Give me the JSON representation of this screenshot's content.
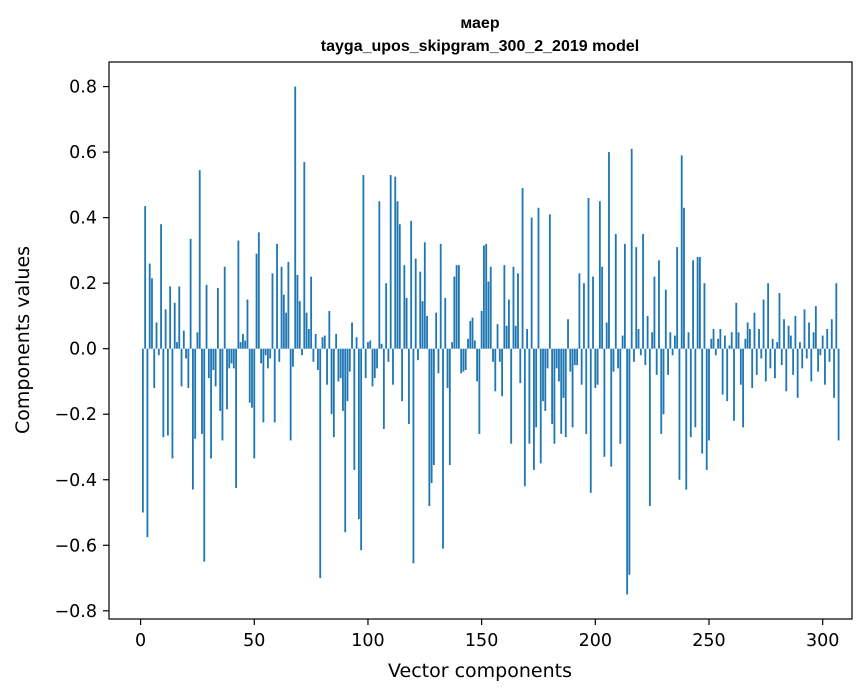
{
  "chart_data": {
    "type": "bar",
    "title_line1": "маер",
    "title_line2": "tayga_upos_skipgram_300_2_2019 model",
    "xlabel": "Vector components",
    "ylabel": "Components values",
    "xlim": [
      -13.9,
      312.9
    ],
    "ylim": [
      -0.825,
      0.875
    ],
    "xticks": [
      0,
      50,
      100,
      150,
      200,
      250,
      300
    ],
    "xtick_labels": [
      "0",
      "50",
      "100",
      "150",
      "200",
      "250",
      "300"
    ],
    "yticks": [
      -0.8,
      -0.6,
      -0.4,
      -0.2,
      0.0,
      0.2,
      0.4,
      0.6,
      0.8
    ],
    "ytick_labels": [
      "−0.8",
      "−0.6",
      "−0.4",
      "−0.2",
      "0.0",
      "0.2",
      "0.4",
      "0.6",
      "0.8"
    ],
    "bar_color": "#1f77b4",
    "grid": false,
    "legend": false,
    "values": [
      -0.5,
      0.435,
      -0.575,
      0.26,
      0.215,
      -0.12,
      0.08,
      -0.02,
      0.38,
      -0.27,
      0.12,
      -0.265,
      0.19,
      -0.335,
      0.14,
      0.02,
      0.19,
      -0.115,
      0.055,
      -0.03,
      -0.12,
      0.335,
      -0.43,
      -0.275,
      0.05,
      0.545,
      -0.26,
      -0.65,
      0.195,
      -0.09,
      -0.335,
      -0.065,
      -0.115,
      0.185,
      -0.19,
      -0.28,
      0.25,
      -0.185,
      -0.06,
      -0.045,
      -0.06,
      -0.425,
      0.33,
      0.02,
      0.045,
      0.025,
      0.15,
      -0.165,
      -0.18,
      -0.335,
      0.29,
      0.355,
      -0.045,
      -0.225,
      -0.02,
      -0.06,
      -0.03,
      0.23,
      -0.225,
      0.32,
      -0.04,
      0.25,
      0.165,
      0.11,
      0.265,
      -0.28,
      -0.055,
      0.8,
      0.225,
      0.145,
      -0.02,
      0.57,
      0.11,
      0.06,
      0.22,
      -0.04,
      0.045,
      -0.065,
      -0.7,
      0.035,
      0.04,
      -0.11,
      0.115,
      -0.2,
      -0.27,
      0.045,
      -0.1,
      -0.09,
      -0.19,
      -0.56,
      -0.16,
      -0.07,
      0.08,
      -0.37,
      0.035,
      -0.52,
      -0.615,
      0.53,
      -0.09,
      0.02,
      0.025,
      -0.115,
      -0.09,
      -0.06,
      0.45,
      0.015,
      -0.245,
      0.2,
      -0.04,
      0.53,
      -0.11,
      0.525,
      0.45,
      0.38,
      -0.16,
      0.255,
      0.155,
      -0.23,
      0.39,
      -0.655,
      0.275,
      -0.035,
      0.235,
      0.145,
      0.325,
      0.1,
      -0.48,
      -0.41,
      -0.355,
      0.11,
      -0.075,
      0.32,
      -0.61,
      0.155,
      -0.12,
      -0.355,
      0.02,
      0.22,
      0.255,
      0.255,
      -0.075,
      -0.07,
      -0.065,
      0.03,
      0.085,
      0.095,
      0.025,
      -0.1,
      -0.26,
      0.115,
      0.315,
      0.32,
      0.205,
      0.25,
      -0.04,
      -0.13,
      0.075,
      -0.04,
      -0.145,
      0.255,
      0.07,
      0.15,
      -0.29,
      0.25,
      0.07,
      0.23,
      -0.105,
      0.49,
      -0.42,
      0.06,
      -0.29,
      0.4,
      -0.37,
      -0.24,
      0.43,
      -0.35,
      -0.16,
      -0.19,
      -0.06,
      0.41,
      -0.23,
      -0.29,
      -0.06,
      -0.1,
      -0.26,
      -0.15,
      -0.27,
      0.09,
      -0.07,
      -0.24,
      -0.05,
      -0.05,
      0.23,
      -0.11,
      0.2,
      -0.26,
      0.46,
      -0.44,
      0.22,
      -0.12,
      -0.11,
      0.45,
      0.25,
      -0.33,
      0.08,
      0.6,
      -0.36,
      -0.07,
      0.35,
      -0.06,
      -0.29,
      0.04,
      0.32,
      -0.75,
      -0.69,
      0.61,
      -0.04,
      0.31,
      0.06,
      -0.02,
      0.35,
      -0.05,
      0.1,
      -0.48,
      0.05,
      0.22,
      -0.08,
      0.27,
      -0.26,
      -0.2,
      0.18,
      -0.08,
      0.05,
      -0.02,
      0.04,
      0.31,
      -0.4,
      0.59,
      0.43,
      -0.43,
      0.05,
      -0.27,
      0.27,
      -0.24,
      0.28,
      0.28,
      -0.32,
      0.2,
      -0.37,
      -0.28,
      0.03,
      0.06,
      -0.02,
      0.03,
      0.06,
      -0.14,
      0.04,
      -0.16,
      0.01,
      0.05,
      -0.22,
      0.14,
      0.05,
      -0.11,
      -0.24,
      0.03,
      0.08,
      0.06,
      -0.12,
      0.11,
      -0.08,
      0.06,
      -0.03,
      0.15,
      -0.1,
      0.2,
      -0.06,
      0.03,
      -0.09,
      0.02,
      0.17,
      -0.05,
      0.09,
      -0.13,
      0.07,
      0.04,
      -0.08,
      0.1,
      -0.15,
      0.02,
      -0.06,
      0.12,
      -0.03,
      0.08,
      -0.1,
      0.05,
      0.13,
      -0.07,
      -0.02,
      0.04,
      -0.11,
      0.06,
      -0.04,
      0.09,
      -0.15,
      0.2,
      -0.28
    ]
  }
}
